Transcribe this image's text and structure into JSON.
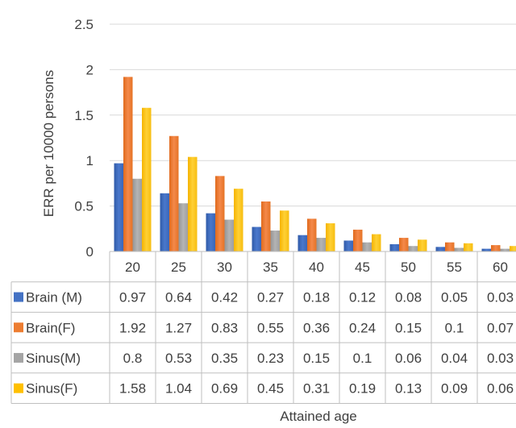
{
  "chart_data": {
    "type": "bar",
    "ylabel": "ERR per 10000 persons",
    "xlabel": "Attained age",
    "ylim": [
      0,
      2.5
    ],
    "yticks": [
      "0",
      "0.5",
      "1",
      "1.5",
      "2",
      "2.5"
    ],
    "ytick_values": [
      0,
      0.5,
      1,
      1.5,
      2,
      2.5
    ],
    "grid": true,
    "legend_placement": "data-table",
    "categories": [
      "20",
      "25",
      "30",
      "35",
      "40",
      "45",
      "50",
      "55",
      "60"
    ],
    "series": [
      {
        "name": "Brain (M)",
        "color": "#4472C4",
        "values": [
          0.97,
          0.64,
          0.42,
          0.27,
          0.18,
          0.12,
          0.08,
          0.05,
          0.03
        ],
        "labels": [
          "0.97",
          "0.64",
          "0.42",
          "0.27",
          "0.18",
          "0.12",
          "0.08",
          "0.05",
          "0.03"
        ]
      },
      {
        "name": "Brain(F)",
        "color": "#ED7D31",
        "values": [
          1.92,
          1.27,
          0.83,
          0.55,
          0.36,
          0.24,
          0.15,
          0.1,
          0.07
        ],
        "labels": [
          "1.92",
          "1.27",
          "0.83",
          "0.55",
          "0.36",
          "0.24",
          "0.15",
          "0.1",
          "0.07"
        ]
      },
      {
        "name": "Sinus(M)",
        "color": "#A5A5A5",
        "values": [
          0.8,
          0.53,
          0.35,
          0.23,
          0.15,
          0.1,
          0.06,
          0.04,
          0.03
        ],
        "labels": [
          "0.8",
          "0.53",
          "0.35",
          "0.23",
          "0.15",
          "0.1",
          "0.06",
          "0.04",
          "0.03"
        ]
      },
      {
        "name": "Sinus(F)",
        "color": "#FFC000",
        "values": [
          1.58,
          1.04,
          0.69,
          0.45,
          0.31,
          0.19,
          0.13,
          0.09,
          0.06
        ],
        "labels": [
          "1.58",
          "1.04",
          "0.69",
          "0.45",
          "0.31",
          "0.19",
          "0.13",
          "0.09",
          "0.06"
        ]
      }
    ]
  }
}
